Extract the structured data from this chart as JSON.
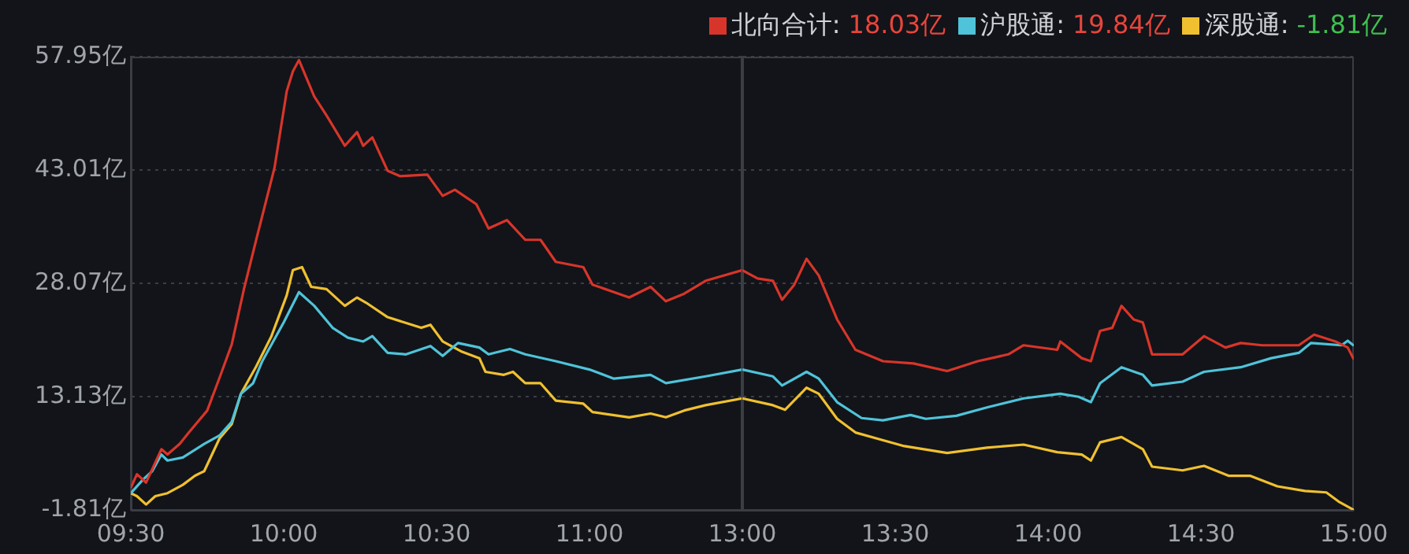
{
  "chart_data": [
    {
      "type": "line",
      "xlim": [
        9.5,
        11.5
      ],
      "xticks": [
        {
          "value": 9.5,
          "label": "09:30"
        },
        {
          "value": 10,
          "label": "10:00"
        },
        {
          "value": 10.5,
          "label": "10:30"
        },
        {
          "value": 11,
          "label": "11:00"
        }
      ],
      "ylim": [
        -1.81,
        57.95
      ],
      "yticks": [
        {
          "value": -1.81,
          "label": "-1.81亿"
        },
        {
          "value": 13.13,
          "label": "13.13亿"
        },
        {
          "value": 28.07,
          "label": "28.07亿"
        },
        {
          "value": 43.01,
          "label": "43.01亿"
        },
        {
          "value": 57.95,
          "label": "57.95亿"
        }
      ],
      "grid": "y",
      "marker": "none",
      "line_style": "solid",
      "series": [
        {
          "color": "#d8352a",
          "x": [
            9.5,
            9.52,
            9.55,
            9.6,
            9.62,
            9.66,
            9.69,
            9.75,
            9.79,
            9.83,
            9.87,
            9.91,
            9.97,
            10.01,
            10.03,
            10.05,
            10.1,
            10.14,
            10.2,
            10.24,
            10.26,
            10.29,
            10.34,
            10.38,
            10.47,
            10.52,
            10.56,
            10.63,
            10.67,
            10.73,
            10.79,
            10.84,
            10.89,
            10.98,
            11.01,
            11.13,
            11.2,
            11.25,
            11.31,
            11.38,
            11.5
          ],
          "values": [
            1.1,
            2.9,
            1.8,
            6.2,
            5.5,
            6.9,
            8.4,
            11.3,
            15.6,
            20.0,
            27.3,
            33.8,
            43.3,
            53.4,
            56.0,
            57.5,
            52.7,
            50.2,
            46.2,
            48.0,
            46.2,
            47.3,
            42.9,
            42.2,
            42.4,
            39.6,
            40.4,
            38.5,
            35.3,
            36.4,
            33.8,
            33.8,
            30.9,
            30.2,
            27.9,
            26.2,
            27.6,
            25.7,
            26.7,
            28.4,
            29.8
          ]
        },
        {
          "color": "#4fc3d9",
          "x": [
            9.5,
            9.54,
            9.57,
            9.6,
            9.62,
            9.67,
            9.74,
            9.79,
            9.83,
            9.86,
            9.9,
            9.93,
            10,
            10.05,
            10.1,
            10.16,
            10.21,
            10.26,
            10.29,
            10.34,
            10.4,
            10.48,
            10.52,
            10.57,
            10.64,
            10.67,
            10.74,
            10.79,
            10.89,
            11,
            11.08,
            11.2,
            11.25,
            11.38,
            11.5
          ],
          "values": [
            0.4,
            2.2,
            3.3,
            5.5,
            4.7,
            5.1,
            6.9,
            8.0,
            9.8,
            13.5,
            14.9,
            17.8,
            22.9,
            26.9,
            25.1,
            22.2,
            20.9,
            20.4,
            21.1,
            18.9,
            18.7,
            19.8,
            18.5,
            20.2,
            19.6,
            18.7,
            19.4,
            18.7,
            17.8,
            16.7,
            15.5,
            16.0,
            14.9,
            15.8,
            16.7
          ]
        },
        {
          "color": "#f0c030",
          "x": [
            9.5,
            9.52,
            9.55,
            9.58,
            9.62,
            9.67,
            9.71,
            9.74,
            9.79,
            9.83,
            9.86,
            9.91,
            9.96,
            10.01,
            10.03,
            10.06,
            10.09,
            10.14,
            10.2,
            10.24,
            10.27,
            10.34,
            10.45,
            10.48,
            10.52,
            10.58,
            10.64,
            10.66,
            10.72,
            10.75,
            10.79,
            10.84,
            10.89,
            10.98,
            11.01,
            11.13,
            11.2,
            11.25,
            11.31,
            11.38,
            11.5
          ],
          "values": [
            0.4,
            0.0,
            -1.1,
            0.0,
            0.4,
            1.5,
            2.7,
            3.3,
            7.6,
            9.5,
            13.5,
            17.1,
            21.1,
            26.5,
            29.8,
            30.2,
            27.6,
            27.3,
            25.1,
            26.2,
            25.5,
            23.6,
            22.2,
            22.6,
            20.4,
            19.1,
            18.2,
            16.4,
            16.0,
            16.4,
            14.9,
            14.9,
            12.6,
            12.2,
            11.1,
            10.4,
            10.9,
            10.4,
            11.3,
            12.0,
            12.9
          ]
        }
      ]
    },
    {
      "type": "line",
      "xlim": [
        13,
        15
      ],
      "xticks": [
        {
          "value": 13,
          "label": "13:00"
        },
        {
          "value": 13.5,
          "label": "13:30"
        },
        {
          "value": 14,
          "label": "14:00"
        },
        {
          "value": 14.5,
          "label": "14:30"
        },
        {
          "value": 15,
          "label": "15:00"
        }
      ],
      "ylim": [
        -1.81,
        57.95
      ],
      "yticks": [
        -1.81,
        13.13,
        28.07,
        43.01,
        57.95
      ],
      "tick_labels": "x",
      "grid": "y",
      "legend": "top",
      "marker": "none",
      "line_style": "solid",
      "annotations": [
        "18.03亿",
        "19.84亿",
        "-1.81亿"
      ],
      "series": [
        {
          "name": "北向合计:",
          "color": "#d8352a",
          "x": [
            13,
            13.05,
            13.1,
            13.13,
            13.17,
            13.21,
            13.25,
            13.31,
            13.37,
            13.46,
            13.56,
            13.67,
            13.77,
            13.87,
            13.92,
            14.03,
            14.04,
            14.11,
            14.14,
            14.17,
            14.21,
            14.24,
            14.28,
            14.31,
            14.34,
            14.44,
            14.51,
            14.58,
            14.63,
            14.7,
            14.82,
            14.87,
            14.94,
            14.98,
            15
          ],
          "values": [
            29.8,
            28.7,
            28.4,
            25.9,
            27.9,
            31.3,
            29.1,
            23.3,
            19.3,
            17.8,
            17.5,
            16.5,
            17.8,
            18.7,
            19.9,
            19.3,
            20.4,
            18.2,
            17.8,
            21.8,
            22.2,
            25.1,
            23.3,
            22.9,
            18.7,
            18.7,
            21.1,
            19.6,
            20.2,
            19.9,
            19.9,
            21.3,
            20.4,
            19.6,
            18.03
          ]
        },
        {
          "name": "沪股通:",
          "color": "#4fc3d9",
          "x": [
            13,
            13.1,
            13.13,
            13.21,
            13.25,
            13.31,
            13.39,
            13.46,
            13.55,
            13.6,
            13.7,
            13.8,
            13.92,
            14.04,
            14.1,
            14.14,
            14.17,
            14.24,
            14.31,
            14.34,
            14.44,
            14.51,
            14.63,
            14.73,
            14.82,
            14.86,
            14.96,
            14.98,
            15
          ],
          "values": [
            16.7,
            15.8,
            14.6,
            16.4,
            15.5,
            12.4,
            10.3,
            10.0,
            10.7,
            10.2,
            10.6,
            11.7,
            12.9,
            13.5,
            13.1,
            12.4,
            14.9,
            17.0,
            16.0,
            14.6,
            15.1,
            16.4,
            17.0,
            18.2,
            18.9,
            20.2,
            19.9,
            20.5,
            19.84
          ]
        },
        {
          "name": "深股通:",
          "color": "#f0c030",
          "x": [
            13,
            13.1,
            13.14,
            13.21,
            13.25,
            13.31,
            13.37,
            13.44,
            13.53,
            13.67,
            13.8,
            13.92,
            14.03,
            14.11,
            14.14,
            14.17,
            14.24,
            14.31,
            14.34,
            14.44,
            14.51,
            14.59,
            14.66,
            14.75,
            14.84,
            14.91,
            14.95,
            15
          ],
          "values": [
            12.9,
            12.0,
            11.4,
            14.3,
            13.5,
            10.2,
            8.4,
            7.6,
            6.6,
            5.7,
            6.4,
            6.8,
            5.8,
            5.5,
            4.7,
            7.1,
            7.8,
            6.2,
            3.9,
            3.4,
            4.0,
            2.7,
            2.7,
            1.3,
            0.7,
            0.5,
            -0.7,
            -1.81
          ]
        }
      ]
    }
  ]
}
